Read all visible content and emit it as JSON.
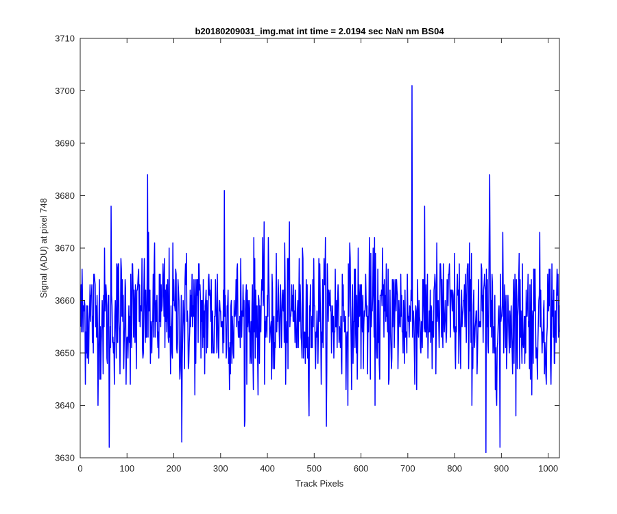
{
  "chart_data": {
    "type": "line",
    "title": "b20180209031_img.mat int time = 2.0194 sec  NaN nm BS04",
    "xlabel": "Track Pixels",
    "ylabel": "Signal (ADU) at pixel 748",
    "xlim": [
      0,
      1024
    ],
    "ylim": [
      3630,
      3710
    ],
    "xticks": [
      0,
      100,
      200,
      300,
      400,
      500,
      600,
      700,
      800,
      900,
      1000
    ],
    "yticks": [
      3630,
      3640,
      3650,
      3660,
      3670,
      3680,
      3690,
      3700,
      3710
    ],
    "grid": false,
    "series_color": "#0000ff",
    "series": [
      {
        "note": "approximate noise trace around ~3657 ADU, 1024 points; key extrema read from plot",
        "n_points": 1024,
        "baseline": 3657,
        "extrema": [
          {
            "x": 61,
            "y": 3632
          },
          {
            "x": 65,
            "y": 3678
          },
          {
            "x": 143,
            "y": 3684
          },
          {
            "x": 216,
            "y": 3633
          },
          {
            "x": 307,
            "y": 3681
          },
          {
            "x": 351,
            "y": 3637
          },
          {
            "x": 708,
            "y": 3701
          },
          {
            "x": 866,
            "y": 3631
          },
          {
            "x": 874,
            "y": 3684
          },
          {
            "x": 896,
            "y": 3632
          }
        ]
      }
    ]
  }
}
